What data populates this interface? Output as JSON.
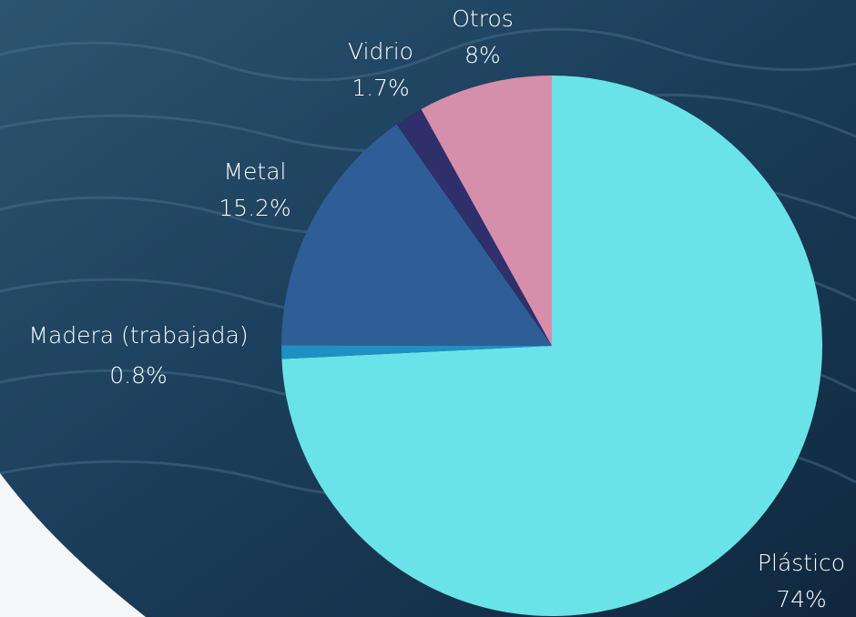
{
  "chart_data": {
    "type": "pie",
    "categories": [
      "Plástico",
      "Madera (trabajada)",
      "Metal",
      "Vidrio",
      "Otros"
    ],
    "values": [
      74,
      0.8,
      15.2,
      1.7,
      8
    ],
    "value_labels": [
      "74%",
      "0.8%",
      "15.2%",
      "1.7%",
      "8%"
    ],
    "colors": [
      "#6ae3e8",
      "#1f8fc4",
      "#2f5e96",
      "#2e2f6b",
      "#d68faa"
    ]
  }
}
